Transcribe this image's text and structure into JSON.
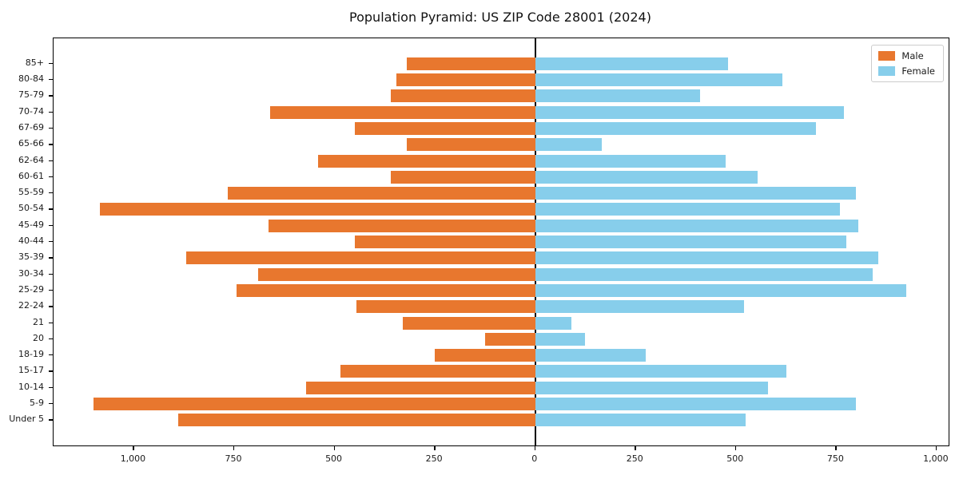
{
  "title": "Population Pyramid: US ZIP Code 28001 (2024)",
  "legend": {
    "male_label": "Male",
    "female_label": "Female"
  },
  "colors": {
    "male": "#e8772e",
    "female": "#87ceeb",
    "axis": "#000000",
    "background": "#ffffff"
  },
  "chart_data": {
    "type": "bar",
    "subtype": "population-pyramid-horizontal",
    "title": "Population Pyramid: US ZIP Code 28001 (2024)",
    "categories_top_to_bottom": [
      "85+",
      "80-84",
      "75-79",
      "70-74",
      "67-69",
      "65-66",
      "62-64",
      "60-61",
      "55-59",
      "50-54",
      "45-49",
      "40-44",
      "35-39",
      "30-34",
      "25-29",
      "22-24",
      "21",
      "20",
      "18-19",
      "15-17",
      "10-14",
      "5-9",
      "Under 5"
    ],
    "series": [
      {
        "name": "Male",
        "side": "left",
        "color": "#e8772e",
        "values": [
          320,
          345,
          360,
          660,
          450,
          320,
          540,
          360,
          765,
          1085,
          665,
          450,
          870,
          690,
          745,
          445,
          330,
          125,
          250,
          485,
          570,
          1100,
          890
        ]
      },
      {
        "name": "Female",
        "side": "right",
        "color": "#87ceeb",
        "values": [
          480,
          615,
          410,
          770,
          700,
          165,
          475,
          555,
          800,
          760,
          805,
          775,
          855,
          840,
          925,
          520,
          90,
          125,
          275,
          625,
          580,
          800,
          525
        ]
      }
    ],
    "xlim": [
      -1200,
      1030
    ],
    "x_ticks": [
      -1000,
      -750,
      -500,
      -250,
      0,
      250,
      500,
      750,
      1000
    ],
    "x_tick_labels": [
      "1,000",
      "750",
      "500",
      "250",
      "0",
      "250",
      "500",
      "750",
      "1,000"
    ],
    "grid": false,
    "legend_position": "upper right",
    "zero_axis_line": true
  }
}
